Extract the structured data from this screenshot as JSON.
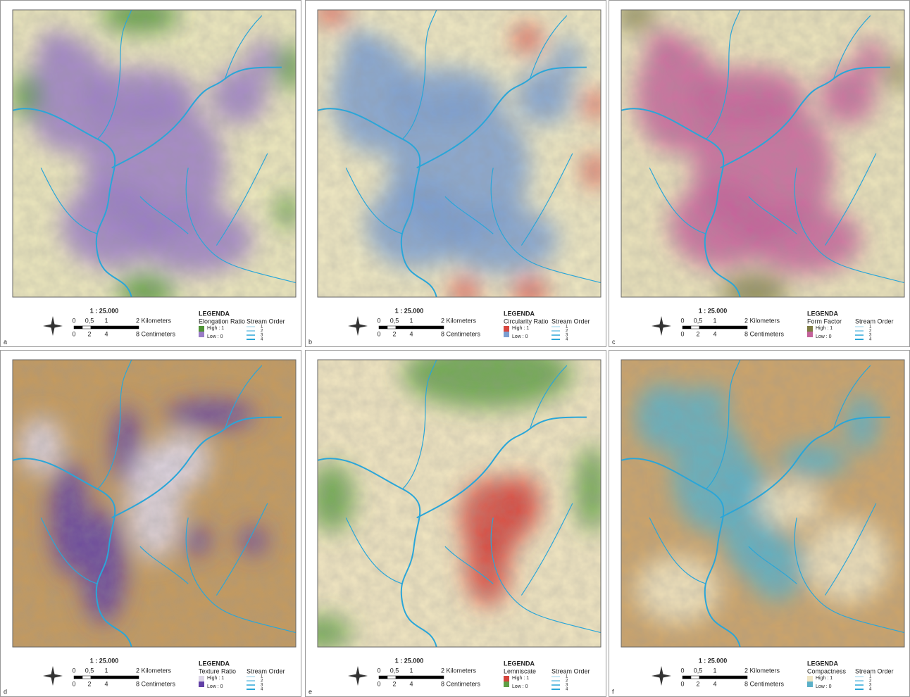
{
  "panels": [
    {
      "label": "a",
      "scale": {
        "ratio": "1 : 25.000",
        "km_ticks": [
          "0",
          "0,5",
          "1"
        ],
        "km_unit": "2 Kilometers",
        "cm_ticks": [
          "0",
          "2",
          "4"
        ],
        "cm_unit": "8 Centimeters"
      },
      "legend": {
        "title": "LEGENDA",
        "variable": "Elongation Ratio",
        "high": "High : 1",
        "low": "Low : 0",
        "stream_title": "Stream Order",
        "stream_orders": [
          "1",
          "2",
          "3",
          "4"
        ]
      }
    },
    {
      "label": "b",
      "scale": {
        "ratio": "1 : 25.000",
        "km_ticks": [
          "0",
          "0,5",
          "1"
        ],
        "km_unit": "2 Kilometers",
        "cm_ticks": [
          "0",
          "2",
          "4"
        ],
        "cm_unit": "8 Centimeters"
      },
      "legend": {
        "title": "LEGENDA",
        "variable": "Circularity Ratio",
        "high": "High : 1",
        "low": "Low : 0",
        "stream_title": "Stream Order",
        "stream_orders": [
          "1",
          "2",
          "3",
          "4"
        ]
      }
    },
    {
      "label": "c",
      "scale": {
        "ratio": "1 : 25.000",
        "km_ticks": [
          "0",
          "0,5",
          "1"
        ],
        "km_unit": "2 Kilometers",
        "cm_ticks": [
          "0",
          "2",
          "4"
        ],
        "cm_unit": "8 Centimeters"
      },
      "legend": {
        "title": "LEGENDA",
        "variable": "Form Factor",
        "high": "High : 1",
        "low": "Low : 0",
        "stream_title": "Stream Order",
        "stream_orders": [
          "1",
          "2",
          "3",
          "4"
        ]
      }
    },
    {
      "label": "d",
      "scale": {
        "ratio": "1 : 25.000",
        "km_ticks": [
          "0",
          "0,5",
          "1"
        ],
        "km_unit": "2 Kilometers",
        "cm_ticks": [
          "0",
          "2",
          "4"
        ],
        "cm_unit": "8 Centimeters"
      },
      "legend": {
        "title": "LEGENDA",
        "variable": "Texture Ratio",
        "high": "High : 1",
        "low": "Low : 0",
        "stream_title": "Stream Order",
        "stream_orders": [
          "1",
          "2",
          "3",
          "4"
        ]
      }
    },
    {
      "label": "e",
      "scale": {
        "ratio": "1 : 25.000",
        "km_ticks": [
          "0",
          "0,5",
          "1"
        ],
        "km_unit": "2 Kilometers",
        "cm_ticks": [
          "0",
          "2",
          "4"
        ],
        "cm_unit": "8 Centimeters"
      },
      "legend": {
        "title": "LEGENDA",
        "variable": "Lemniscate",
        "high": "High : 1",
        "low": "Low : 0",
        "stream_title": "Stream Order",
        "stream_orders": [
          "1",
          "2",
          "3",
          "4"
        ]
      }
    },
    {
      "label": "f",
      "scale": {
        "ratio": "1 : 25.000",
        "km_ticks": [
          "0",
          "0,5",
          "1"
        ],
        "km_unit": "2 Kilometers",
        "cm_ticks": [
          "0",
          "2",
          "4"
        ],
        "cm_unit": "8 Centimeters"
      },
      "legend": {
        "title": "LEGENDA",
        "variable": "Compactness",
        "high": "High : 1",
        "low": "Low : 0",
        "stream_title": "Stream Order",
        "stream_orders": [
          "1",
          "2",
          "3",
          "4"
        ]
      }
    }
  ]
}
